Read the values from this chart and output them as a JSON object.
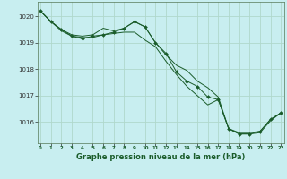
{
  "title": "Graphe pression niveau de la mer (hPa)",
  "background_color": "#c8eef0",
  "plot_bg_color": "#c8eef0",
  "grid_color": "#b0d8cc",
  "line_color": "#1a5c2a",
  "marker_color": "#1a5c2a",
  "xlim": [
    -0.3,
    23.3
  ],
  "ylim": [
    1015.2,
    1020.55
  ],
  "yticks": [
    1016,
    1017,
    1018,
    1019,
    1020
  ],
  "xticks": [
    0,
    1,
    2,
    3,
    4,
    5,
    6,
    7,
    8,
    9,
    10,
    11,
    12,
    13,
    14,
    15,
    16,
    17,
    18,
    19,
    20,
    21,
    22,
    23
  ],
  "series1": {
    "x": [
      0,
      1,
      2,
      3,
      4,
      5,
      6,
      7,
      8,
      9,
      10,
      11,
      12,
      13,
      14,
      15,
      16,
      17,
      18,
      19,
      20,
      21,
      22,
      23
    ],
    "y": [
      1020.2,
      1019.8,
      1019.5,
      1019.3,
      1019.25,
      1019.3,
      1019.55,
      1019.45,
      1019.55,
      1019.8,
      1019.6,
      1019.0,
      1018.55,
      1018.15,
      1017.95,
      1017.55,
      1017.3,
      1016.95,
      1015.75,
      1015.6,
      1015.6,
      1015.65,
      1016.1,
      1016.35
    ]
  },
  "series2": {
    "x": [
      0,
      1,
      2,
      3,
      4,
      5,
      6,
      7,
      8,
      9,
      10,
      11,
      12,
      13,
      14,
      15,
      16,
      17,
      18,
      19,
      20,
      21,
      22,
      23
    ],
    "y": [
      1020.2,
      1019.8,
      1019.45,
      1019.25,
      1019.2,
      1019.2,
      1019.3,
      1019.35,
      1019.4,
      1019.4,
      1019.1,
      1018.85,
      1018.3,
      1017.8,
      1017.35,
      1017.0,
      1016.65,
      1016.85,
      1015.75,
      1015.55,
      1015.55,
      1015.6,
      1016.05,
      1016.35
    ]
  },
  "series3": {
    "x": [
      0,
      1,
      2,
      3,
      4,
      5,
      6,
      7,
      8,
      9,
      10,
      11,
      12,
      13,
      14,
      15,
      16,
      17,
      18,
      19,
      20,
      21,
      22,
      23
    ],
    "y": [
      1020.2,
      1019.8,
      1019.5,
      1019.25,
      1019.15,
      1019.25,
      1019.3,
      1019.4,
      1019.55,
      1019.8,
      1019.6,
      1019.0,
      1018.6,
      1017.9,
      1017.55,
      1017.35,
      1016.95,
      1016.85,
      1015.75,
      1015.55,
      1015.55,
      1015.65,
      1016.1,
      1016.35
    ]
  }
}
